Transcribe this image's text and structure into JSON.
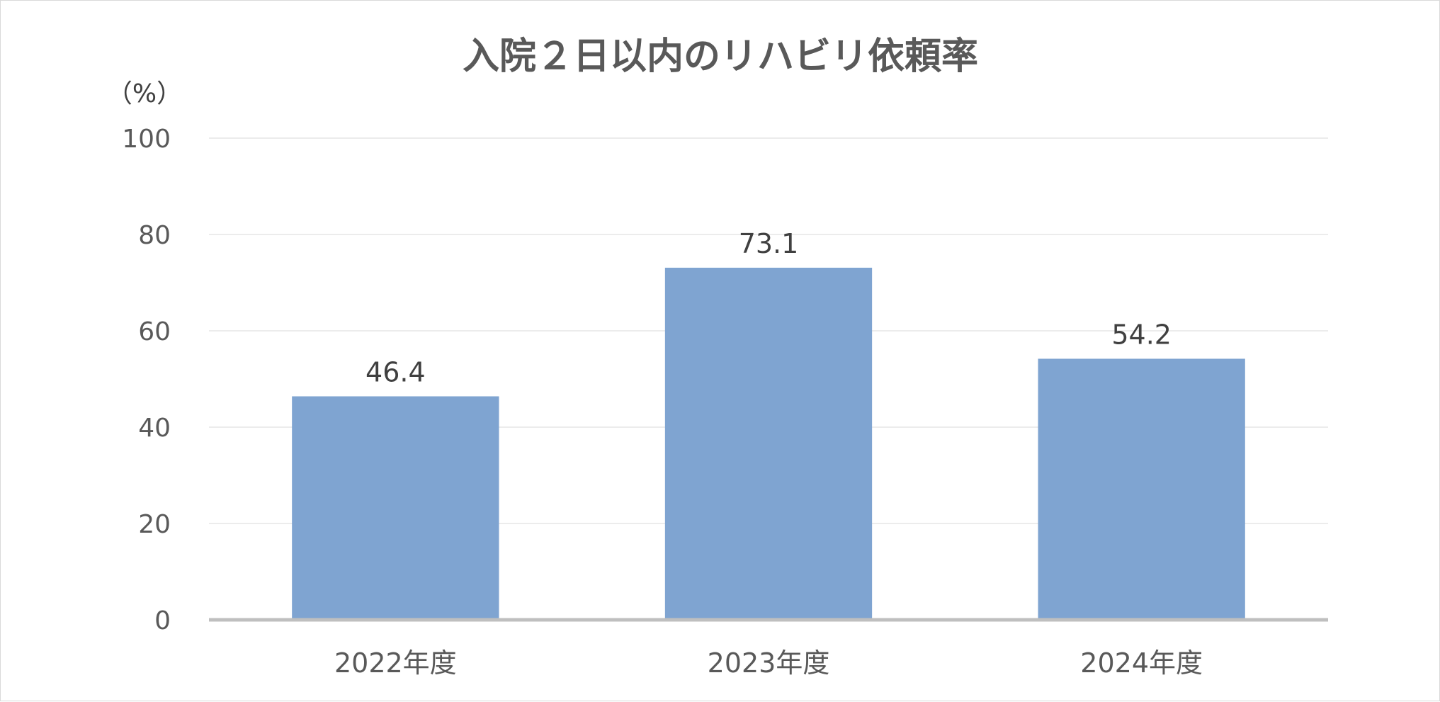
{
  "chart_data": {
    "type": "bar",
    "title": "入院２日以内のリハビリ依頼率",
    "ylabel": "（%）",
    "xlabel": "",
    "categories": [
      "2022年度",
      "2023年度",
      "2024年度"
    ],
    "values": [
      46.4,
      73.1,
      54.2
    ],
    "data_labels": [
      "46.4",
      "73.1",
      "54.2"
    ],
    "ylim": [
      0,
      100
    ],
    "yticks": [
      0,
      20,
      40,
      60,
      80,
      100
    ],
    "ytick_labels": [
      "0",
      "20",
      "40",
      "60",
      "80",
      "100"
    ],
    "grid": true,
    "legend": "none",
    "bar_color": "#7fa4d1"
  }
}
